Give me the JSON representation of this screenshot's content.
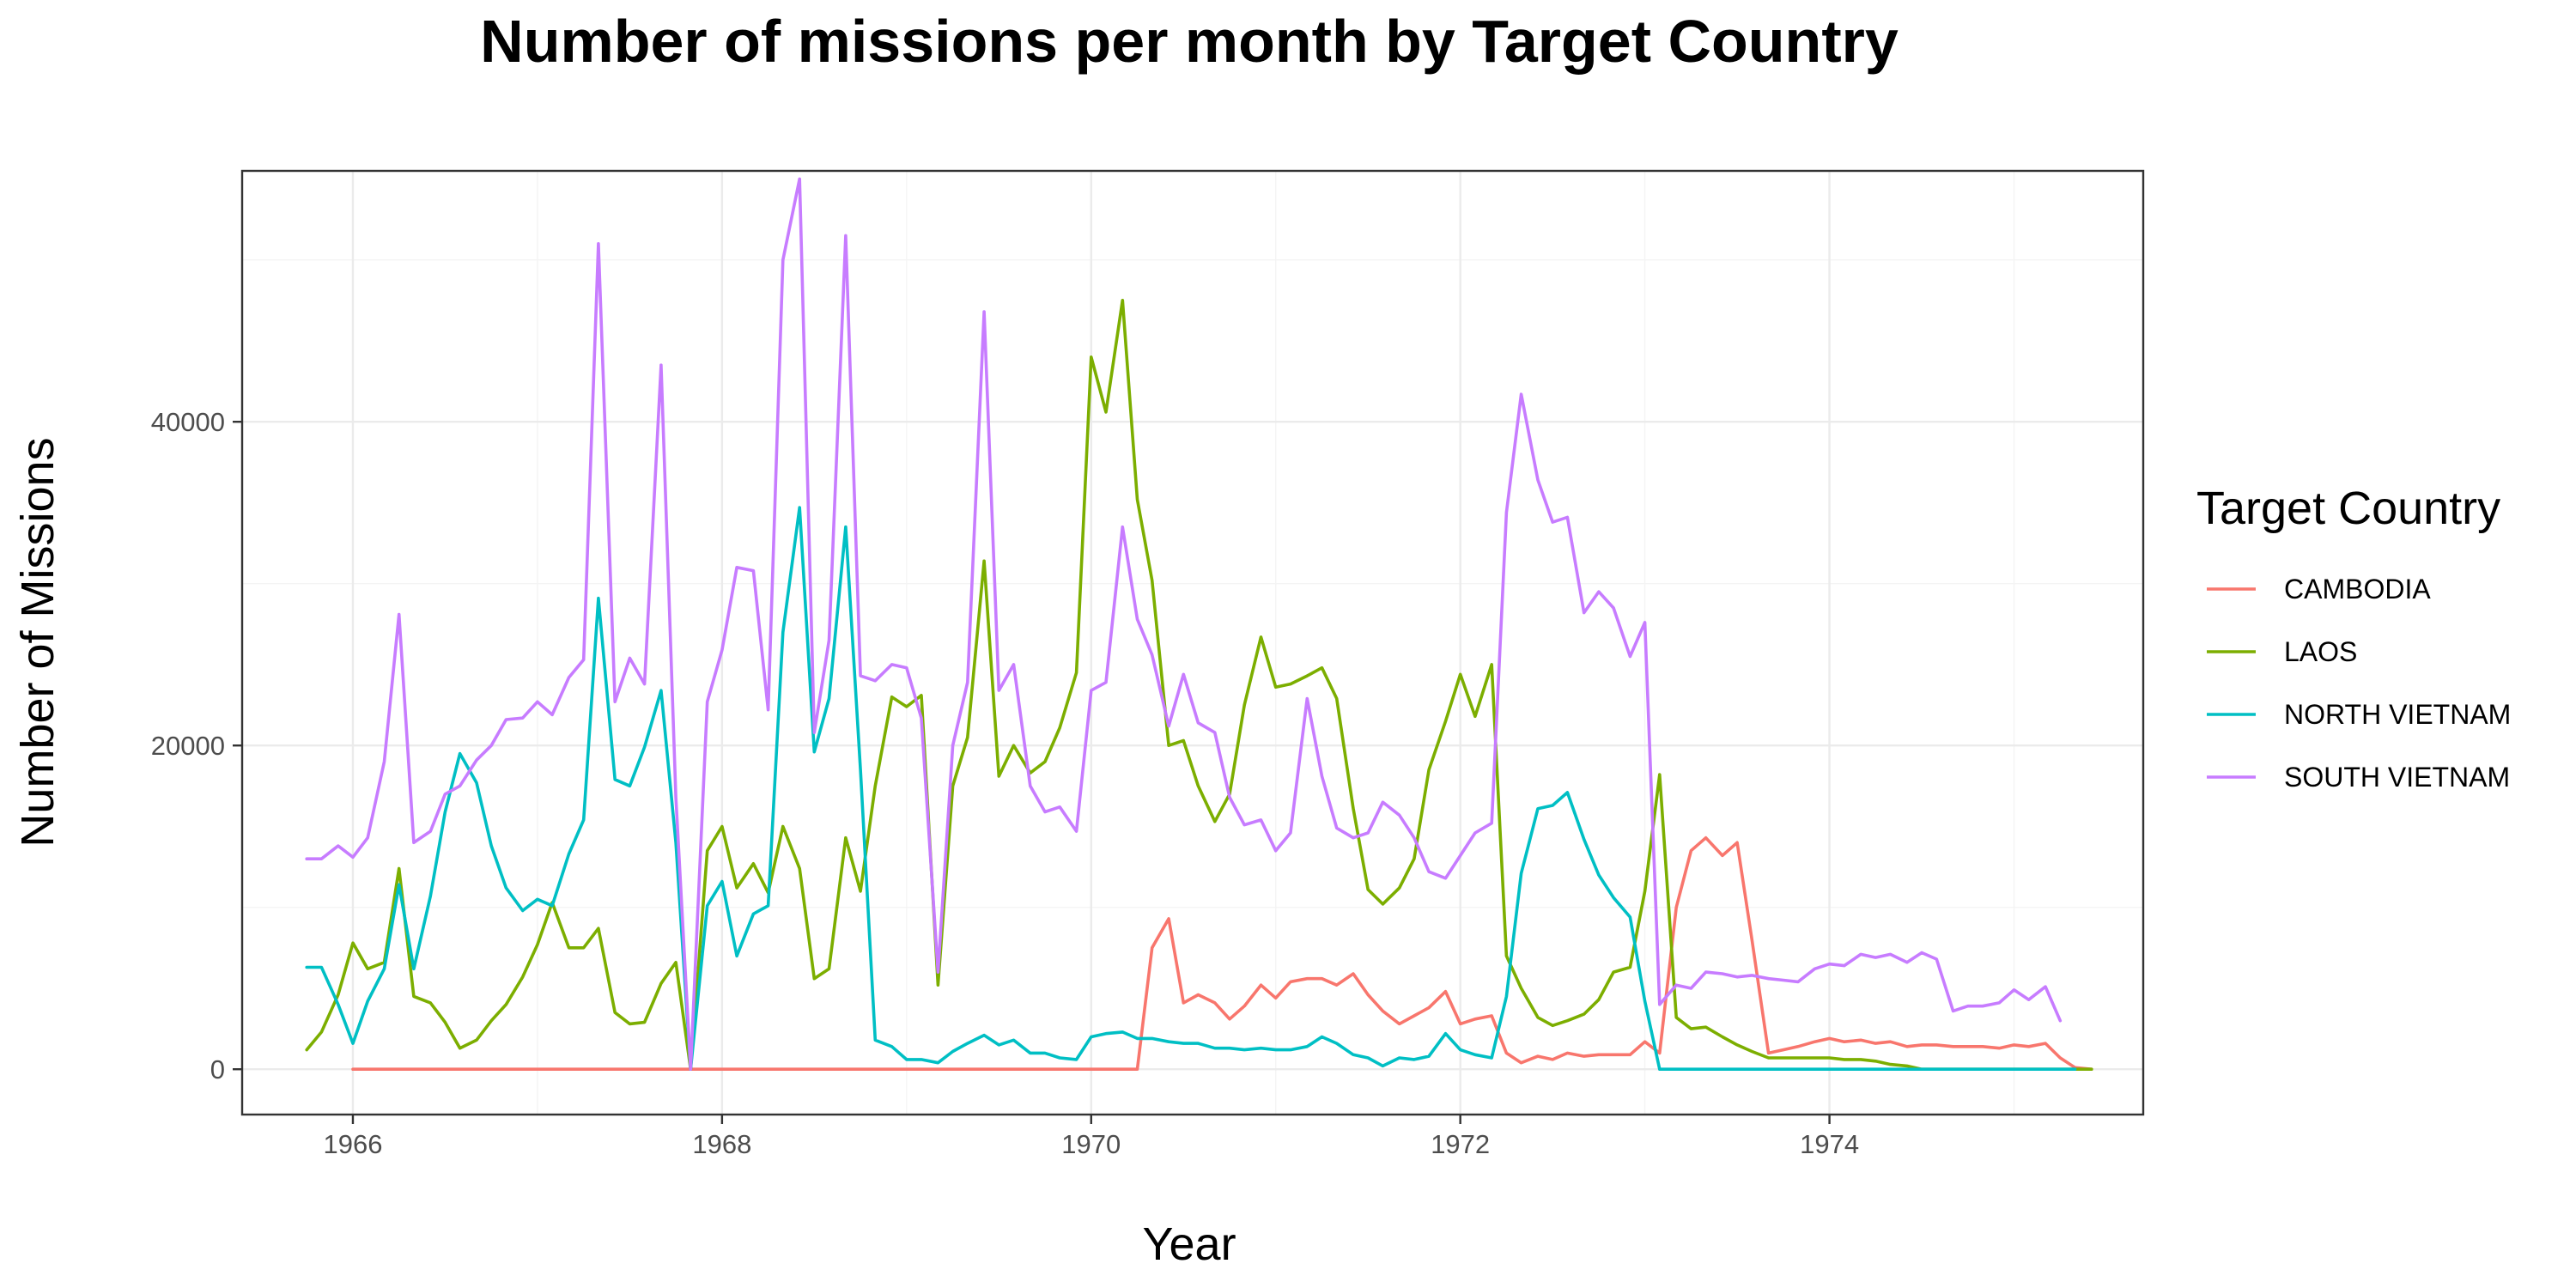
{
  "chart_data": {
    "type": "line",
    "title": "Number of missions per month by Target Country",
    "xlabel": "Year",
    "ylabel": "Number of Missions",
    "legend_title": "Target Country",
    "legend_position": "right",
    "grid": true,
    "xlim": [
      1965.4,
      1975.7
    ],
    "ylim": [
      -2800,
      55500
    ],
    "x_ticks": [
      1966,
      1968,
      1970,
      1972,
      1974
    ],
    "x_tick_labels": [
      "1966",
      "1968",
      "1970",
      "1972",
      "1974"
    ],
    "y_ticks": [
      0,
      20000,
      40000
    ],
    "y_tick_labels": [
      "0",
      "20000",
      "40000"
    ],
    "series": [
      {
        "name": "CAMBODIA",
        "color": "#F8766D",
        "x": [
          1966.0,
          1970.25,
          1970.33,
          1970.42,
          1970.5,
          1970.58,
          1970.67,
          1970.75,
          1970.83,
          1970.92,
          1971.0,
          1971.08,
          1971.17,
          1971.25,
          1971.33,
          1971.42,
          1971.5,
          1971.58,
          1971.67,
          1971.75,
          1971.83,
          1971.92,
          1972.0,
          1972.08,
          1972.17,
          1972.25,
          1972.33,
          1972.42,
          1972.5,
          1972.58,
          1972.67,
          1972.75,
          1972.83,
          1972.92,
          1973.0,
          1973.08,
          1973.17,
          1973.25,
          1973.33,
          1973.42,
          1973.5,
          1973.58,
          1973.67,
          1973.75,
          1973.83,
          1973.92,
          1974.0,
          1974.08,
          1974.17,
          1974.25,
          1974.33,
          1974.42,
          1974.5,
          1974.58,
          1974.67,
          1974.75,
          1974.83,
          1974.92,
          1975.0,
          1975.08,
          1975.17,
          1975.25,
          1975.33,
          1975.42
        ],
        "y": [
          0,
          0,
          7500,
          9300,
          4100,
          4600,
          4100,
          3100,
          3900,
          5200,
          4400,
          5400,
          5600,
          5600,
          5200,
          5900,
          4600,
          3600,
          2800,
          3300,
          3800,
          4800,
          2800,
          3100,
          3300,
          1000,
          400,
          800,
          600,
          1000,
          800,
          900,
          900,
          900,
          1700,
          1000,
          10000,
          13500,
          14300,
          13200,
          14000,
          8000,
          1000,
          1200,
          1400,
          1700,
          1900,
          1700,
          1800,
          1600,
          1700,
          1400,
          1500,
          1500,
          1400,
          1400,
          1400,
          1300,
          1500,
          1400,
          1600,
          700,
          100,
          0
        ]
      },
      {
        "name": "LAOS",
        "color": "#7CAE00",
        "x": [
          1965.75,
          1965.83,
          1965.92,
          1966.0,
          1966.08,
          1966.17,
          1966.25,
          1966.33,
          1966.42,
          1966.5,
          1966.58,
          1966.67,
          1966.75,
          1966.83,
          1966.92,
          1967.0,
          1967.08,
          1967.17,
          1967.25,
          1967.33,
          1967.42,
          1967.5,
          1967.58,
          1967.67,
          1967.75,
          1967.83,
          1967.92,
          1968.0,
          1968.08,
          1968.17,
          1968.25,
          1968.33,
          1968.42,
          1968.5,
          1968.58,
          1968.67,
          1968.75,
          1968.83,
          1968.92,
          1969.0,
          1969.08,
          1969.17,
          1969.25,
          1969.33,
          1969.42,
          1969.5,
          1969.58,
          1969.67,
          1969.75,
          1969.83,
          1969.92,
          1970.0,
          1970.08,
          1970.17,
          1970.25,
          1970.33,
          1970.42,
          1970.5,
          1970.58,
          1970.67,
          1970.75,
          1970.83,
          1970.92,
          1971.0,
          1971.08,
          1971.17,
          1971.25,
          1971.33,
          1971.42,
          1971.5,
          1971.58,
          1971.67,
          1971.75,
          1971.83,
          1971.92,
          1972.0,
          1972.08,
          1972.17,
          1972.25,
          1972.33,
          1972.42,
          1972.5,
          1972.58,
          1972.67,
          1972.75,
          1972.83,
          1972.92,
          1973.0,
          1973.08,
          1973.17,
          1973.25,
          1973.33,
          1973.42,
          1973.5,
          1973.58,
          1973.67,
          1973.75,
          1973.83,
          1973.92,
          1974.0,
          1974.08,
          1974.17,
          1974.25,
          1974.33,
          1974.42,
          1974.5,
          1975.25,
          1975.33,
          1975.42
        ],
        "y": [
          1200,
          2300,
          4600,
          7800,
          6200,
          6600,
          12400,
          4500,
          4100,
          2900,
          1300,
          1800,
          3000,
          4000,
          5700,
          7700,
          10300,
          7500,
          7500,
          8700,
          3500,
          2800,
          2900,
          5300,
          6600,
          0,
          13500,
          15000,
          11200,
          12700,
          10900,
          15000,
          12400,
          5600,
          6200,
          14300,
          11000,
          17500,
          23000,
          22400,
          23100,
          5200,
          17500,
          20500,
          31400,
          18100,
          20000,
          18300,
          19000,
          21100,
          24500,
          44000,
          40600,
          47500,
          35200,
          30200,
          20000,
          20300,
          17500,
          15300,
          17000,
          22500,
          26700,
          23600,
          23800,
          24300,
          24800,
          22900,
          16100,
          11100,
          10200,
          11200,
          13000,
          18500,
          21500,
          24400,
          21800,
          25000,
          7000,
          5000,
          3200,
          2700,
          3000,
          3400,
          4300,
          6000,
          6300,
          11000,
          18200,
          3200,
          2500,
          2600,
          2000,
          1500,
          1100,
          700,
          700,
          700,
          700,
          700,
          600,
          600,
          500,
          300,
          200,
          0,
          0,
          0,
          0
        ]
      },
      {
        "name": "NORTH VIETNAM",
        "color": "#00BFC4",
        "x": [
          1965.75,
          1965.83,
          1965.92,
          1966.0,
          1966.08,
          1966.17,
          1966.25,
          1966.33,
          1966.42,
          1966.5,
          1966.58,
          1966.67,
          1966.75,
          1966.83,
          1966.92,
          1967.0,
          1967.08,
          1967.17,
          1967.25,
          1967.33,
          1967.42,
          1967.5,
          1967.58,
          1967.67,
          1967.75,
          1967.83,
          1967.92,
          1968.0,
          1968.08,
          1968.17,
          1968.25,
          1968.33,
          1968.42,
          1968.5,
          1968.58,
          1968.67,
          1968.75,
          1968.83,
          1968.92,
          1969.0,
          1969.08,
          1969.17,
          1969.25,
          1969.33,
          1969.42,
          1969.5,
          1969.58,
          1969.67,
          1969.75,
          1969.83,
          1969.92,
          1970.0,
          1970.08,
          1970.17,
          1970.25,
          1970.33,
          1970.42,
          1970.5,
          1970.58,
          1970.67,
          1970.75,
          1970.83,
          1970.92,
          1971.0,
          1971.08,
          1971.17,
          1971.25,
          1971.33,
          1971.42,
          1971.5,
          1971.58,
          1971.67,
          1971.75,
          1971.83,
          1971.92,
          1972.0,
          1972.08,
          1972.17,
          1972.25,
          1972.33,
          1972.42,
          1972.5,
          1972.58,
          1972.67,
          1972.75,
          1972.83,
          1972.92,
          1973.0,
          1973.08,
          1973.17,
          1973.25,
          1973.33,
          1973.42,
          1973.5,
          1973.58,
          1973.67,
          1973.75,
          1974.0,
          1974.5,
          1975.0,
          1975.33
        ],
        "y": [
          6300,
          6300,
          4000,
          1600,
          4200,
          6200,
          11400,
          6200,
          10700,
          15900,
          19500,
          17700,
          13800,
          11200,
          9800,
          10500,
          10100,
          13300,
          15400,
          29100,
          17900,
          17500,
          19900,
          23400,
          14000,
          0,
          10100,
          11600,
          7000,
          9600,
          10100,
          27000,
          34700,
          19600,
          22900,
          33500,
          18500,
          1800,
          1400,
          600,
          600,
          400,
          1100,
          1600,
          2100,
          1500,
          1800,
          1000,
          1000,
          700,
          600,
          2000,
          2200,
          2300,
          1900,
          1900,
          1700,
          1600,
          1600,
          1300,
          1300,
          1200,
          1300,
          1200,
          1200,
          1400,
          2000,
          1600,
          900,
          700,
          200,
          700,
          600,
          800,
          2200,
          1200,
          900,
          700,
          4500,
          12100,
          16100,
          16300,
          17100,
          14200,
          12000,
          10600,
          9400,
          4200,
          0,
          0,
          0,
          0,
          0,
          0,
          0,
          0,
          0,
          0,
          0,
          0,
          0
        ]
      },
      {
        "name": "SOUTH VIETNAM",
        "color": "#C77CFF",
        "x": [
          1965.75,
          1965.83,
          1965.92,
          1966.0,
          1966.08,
          1966.17,
          1966.25,
          1966.33,
          1966.42,
          1966.5,
          1966.58,
          1966.67,
          1966.75,
          1966.83,
          1966.92,
          1967.0,
          1967.08,
          1967.17,
          1967.25,
          1967.33,
          1967.42,
          1967.5,
          1967.58,
          1967.67,
          1967.75,
          1967.83,
          1967.92,
          1968.0,
          1968.08,
          1968.17,
          1968.25,
          1968.33,
          1968.42,
          1968.5,
          1968.58,
          1968.67,
          1968.75,
          1968.83,
          1968.92,
          1969.0,
          1969.08,
          1969.17,
          1969.25,
          1969.33,
          1969.42,
          1969.5,
          1969.58,
          1969.67,
          1969.75,
          1969.83,
          1969.92,
          1970.0,
          1970.08,
          1970.17,
          1970.25,
          1970.33,
          1970.42,
          1970.5,
          1970.58,
          1970.67,
          1970.75,
          1970.83,
          1970.92,
          1971.0,
          1971.08,
          1971.17,
          1971.25,
          1971.33,
          1971.42,
          1971.5,
          1971.58,
          1971.67,
          1971.75,
          1971.83,
          1971.92,
          1972.0,
          1972.08,
          1972.17,
          1972.25,
          1972.33,
          1972.42,
          1972.5,
          1972.58,
          1972.67,
          1972.75,
          1972.83,
          1972.92,
          1973.0,
          1973.08,
          1973.17,
          1973.25,
          1973.33,
          1973.42,
          1973.5,
          1973.58,
          1973.67,
          1973.75,
          1973.83,
          1973.92,
          1974.0,
          1974.08,
          1974.17,
          1974.25,
          1974.33,
          1974.42,
          1974.5,
          1974.58,
          1974.67,
          1974.75,
          1974.83,
          1974.92,
          1975.0,
          1975.08,
          1975.17,
          1975.25
        ],
        "y": [
          13000,
          13000,
          13800,
          13100,
          14300,
          19000,
          28100,
          14000,
          14700,
          17000,
          17500,
          19100,
          20000,
          21600,
          21700,
          22700,
          21900,
          24200,
          25300,
          51000,
          22700,
          25400,
          23800,
          43500,
          16800,
          0,
          22700,
          25900,
          31000,
          30800,
          22200,
          50000,
          55000,
          20800,
          26500,
          51500,
          24300,
          24000,
          25000,
          24800,
          21700,
          6000,
          20000,
          23900,
          46800,
          23400,
          25000,
          17500,
          15900,
          16200,
          14700,
          23400,
          23900,
          33500,
          27800,
          25600,
          21200,
          24400,
          21400,
          20800,
          16800,
          15100,
          15400,
          13500,
          14600,
          22900,
          18100,
          14900,
          14300,
          14600,
          16500,
          15700,
          14300,
          12200,
          11800,
          13200,
          14600,
          15200,
          34400,
          41700,
          36400,
          33800,
          34100,
          28200,
          29500,
          28500,
          25500,
          27600,
          4000,
          5200,
          5000,
          6000,
          5900,
          5700,
          5800,
          5600,
          5500,
          5400,
          6200,
          6500,
          6400,
          7100,
          6900,
          7100,
          6600,
          7200,
          6800,
          3600,
          3900,
          3900,
          4100,
          4900,
          4300,
          5100,
          3000
        ]
      }
    ]
  }
}
